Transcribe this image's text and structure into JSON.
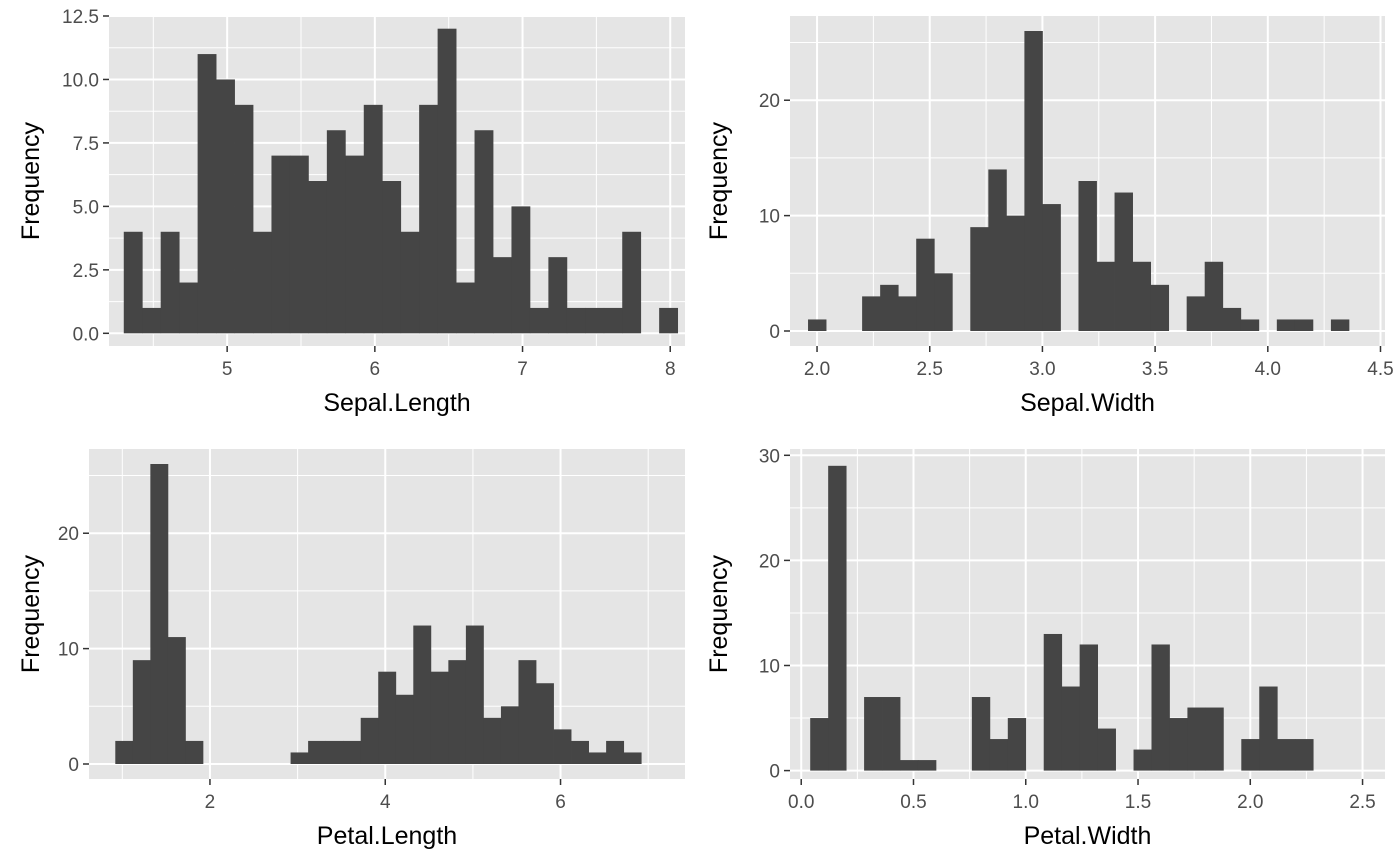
{
  "figure": {
    "panel_background": "#e5e5e5",
    "gridline_color": "#ffffff",
    "bar_color": "#454545",
    "tick_color": "#333333"
  },
  "chart_data": [
    {
      "type": "bar",
      "histogram": true,
      "variable": "Sepal.Length",
      "xlabel": "Sepal.Length",
      "ylabel": "Frequency",
      "bins": 30,
      "binwidth": 0.125,
      "bin_start": 4.3,
      "counts": [
        4,
        1,
        4,
        2,
        11,
        10,
        9,
        4,
        7,
        7,
        6,
        8,
        7,
        9,
        6,
        4,
        9,
        12,
        2,
        8,
        3,
        5,
        1,
        3,
        1,
        1,
        1,
        4,
        0,
        1
      ],
      "xlim": [
        4.2,
        8.1
      ],
      "ylim": [
        -0.5,
        12.5
      ],
      "xticks": [
        5,
        6,
        7,
        8
      ],
      "xtick_labels": [
        "5",
        "6",
        "7",
        "8"
      ],
      "yticks": [
        0,
        2.5,
        5,
        7.5,
        10,
        12.5
      ],
      "ytick_labels": [
        "0.0",
        "2.5",
        "5.0",
        "7.5",
        "10.0",
        "12.5"
      ],
      "grid": true
    },
    {
      "type": "bar",
      "histogram": true,
      "variable": "Sepal.Width",
      "xlabel": "Sepal.Width",
      "ylabel": "Frequency",
      "bins": 30,
      "binwidth": 0.08,
      "bin_start": 1.96,
      "counts": [
        1,
        0,
        0,
        3,
        4,
        3,
        8,
        5,
        0,
        9,
        14,
        10,
        26,
        11,
        0,
        13,
        6,
        12,
        6,
        4,
        0,
        3,
        6,
        2,
        1,
        0,
        1,
        1,
        0,
        1
      ],
      "xlim": [
        1.88,
        4.52
      ],
      "ylim": [
        -1.3,
        27.3
      ],
      "xticks": [
        2.0,
        2.5,
        3.0,
        3.5,
        4.0,
        4.5
      ],
      "xtick_labels": [
        "2.0",
        "2.5",
        "3.0",
        "3.5",
        "4.0",
        "4.5"
      ],
      "yticks": [
        0,
        10,
        20
      ],
      "ytick_labels": [
        "0",
        "10",
        "20"
      ],
      "grid": true
    },
    {
      "type": "bar",
      "histogram": true,
      "variable": "Petal.Length",
      "xlabel": "Petal.Length",
      "ylabel": "Frequency",
      "bins": 30,
      "binwidth": 0.2,
      "bin_start": 0.92,
      "counts": [
        2,
        9,
        26,
        11,
        2,
        0,
        0,
        0,
        0,
        0,
        1,
        2,
        2,
        2,
        4,
        8,
        6,
        12,
        8,
        9,
        12,
        4,
        5,
        9,
        7,
        3,
        2,
        1,
        2,
        1
      ],
      "xlim": [
        0.62,
        7.42
      ],
      "ylim": [
        -1.3,
        27.3
      ],
      "xticks": [
        2,
        4,
        6
      ],
      "xtick_labels": [
        "2",
        "4",
        "6"
      ],
      "yticks": [
        0,
        10,
        20
      ],
      "ytick_labels": [
        "0",
        "10",
        "20"
      ],
      "grid": true
    },
    {
      "type": "bar",
      "histogram": true,
      "variable": "Petal.Width",
      "xlabel": "Petal.Width",
      "ylabel": "Frequency",
      "bins": 30,
      "binwidth": 0.08,
      "bin_start": 0.04,
      "counts": [
        5,
        29,
        0,
        7,
        7,
        1,
        1,
        0,
        0,
        7,
        3,
        5,
        0,
        13,
        8,
        12,
        4,
        0,
        2,
        12,
        5,
        6,
        6,
        0,
        3,
        8,
        3,
        3,
        0,
        0
      ],
      "xlim": [
        -0.05,
        2.6
      ],
      "ylim": [
        -0.8,
        30.6
      ],
      "xticks": [
        0.0,
        0.5,
        1.0,
        1.5,
        2.0,
        2.5
      ],
      "xtick_labels": [
        "0.0",
        "0.5",
        "1.0",
        "1.5",
        "2.0",
        "2.5"
      ],
      "yticks": [
        0,
        10,
        20,
        30
      ],
      "ytick_labels": [
        "0",
        "10",
        "20",
        "30"
      ],
      "grid": true
    }
  ]
}
